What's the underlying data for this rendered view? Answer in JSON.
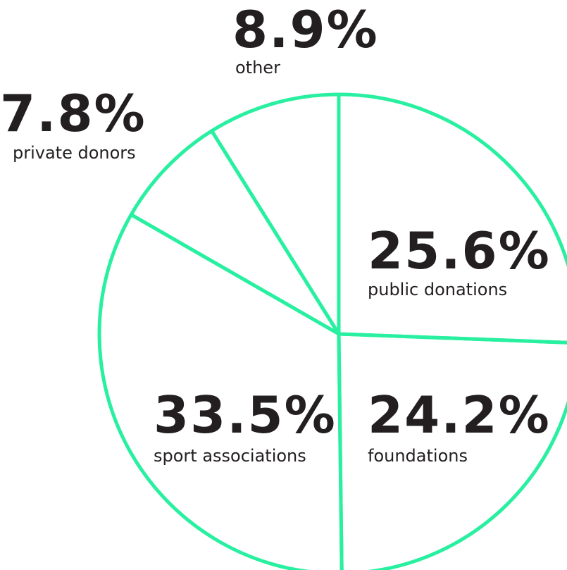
{
  "chart_data": {
    "type": "pie",
    "title": "",
    "colors": {
      "outline": "#28f0a0",
      "text": "#231f20",
      "background": "#ffffff"
    },
    "slices": [
      {
        "label": "public donations",
        "value": 25.6,
        "value_text": "25.6%"
      },
      {
        "label": "foundations",
        "value": 24.2,
        "value_text": "24.2%"
      },
      {
        "label": "sport associations",
        "value": 33.5,
        "value_text": "33.5%"
      },
      {
        "label": "private donors",
        "value": 7.8,
        "value_text": "7.8%"
      },
      {
        "label": "other",
        "value": 8.9,
        "value_text": "8.9%"
      }
    ]
  }
}
